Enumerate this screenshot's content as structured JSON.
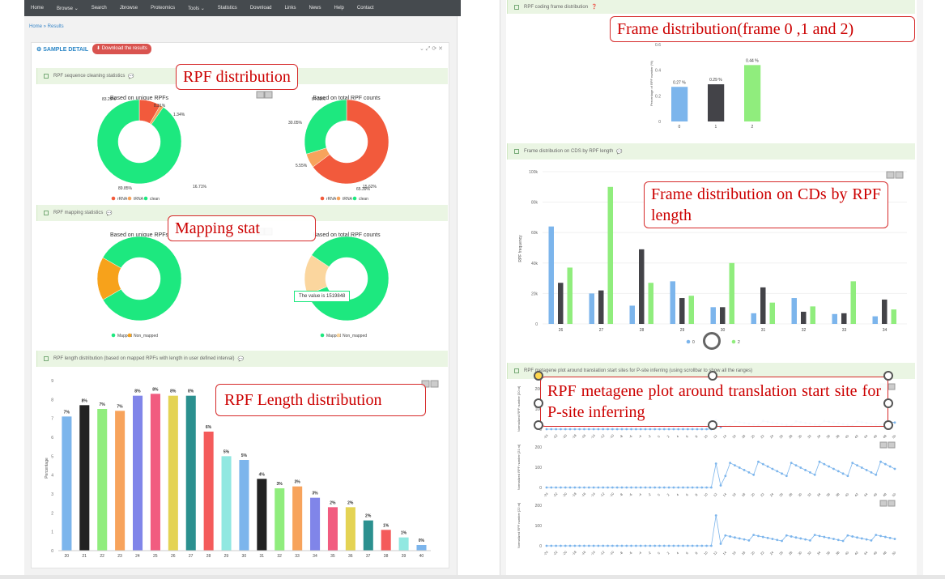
{
  "nav": [
    "Home",
    "Browse ⌄",
    "Search",
    "Jbrowse",
    "Proteomics",
    "Tools ⌄",
    "Statistics",
    "Download",
    "Links",
    "News",
    "Help",
    "Contact"
  ],
  "breadcrumb": "Home » Results",
  "sample_detail": "SAMPLE DETAIL",
  "download_btn": "Download the results",
  "win_controls": "⌄ ⤢ ⟳ ✕",
  "sections": {
    "cleaning": "RPF sequence cleaning statistics",
    "mapping": "RPF mapping statistics",
    "length": "RPF length distribution (based on mapped RPFs with length in user defined interval)",
    "coding": "RPF coding frame distribution",
    "frame_cds": "Frame distribution on CDS by RPF length",
    "metagene": "RPF metagene plot around translation start sites for P-site inferring (using scrollbar to show all the ranges)"
  },
  "callouts": {
    "rpf_dist": "RPF distribution",
    "mapping": "Mapping stat",
    "length": "RPF Length distribution",
    "frame": "Frame distribution(frame 0 ,1 and 2)",
    "frame_cds": "Frame distribution on CDs by RPF length",
    "metagene": "RPF metagene plot around translation start site for P-site inferring"
  },
  "tooltip": "The value is 1519848",
  "chart_data": [
    {
      "type": "pie",
      "title": "Based on unique RPFs",
      "labels": [
        "rRNA",
        "tRNA",
        "clean"
      ],
      "values": [
        8.31,
        1.34,
        89.85
      ],
      "colors": [
        "#f25a3c",
        "#f7a35c",
        "#1de87f"
      ],
      "label_text": [
        "8.31%",
        "1.34%",
        "89.85%"
      ]
    },
    {
      "type": "pie",
      "title": "Based on total RPF counts",
      "labels": [
        "rRNA",
        "tRNA",
        "clean"
      ],
      "values": [
        65.39,
        5.55,
        30.05
      ],
      "colors": [
        "#f25a3c",
        "#f7a35c",
        "#1de87f"
      ],
      "label_text": [
        "65.39%",
        "5.55%",
        "30.05%"
      ]
    },
    {
      "type": "pie",
      "title": "Based on unique RPFs",
      "labels": [
        "Mapped",
        "Non_mapped"
      ],
      "values": [
        83.29,
        16.71
      ],
      "colors": [
        "#1de87f",
        "#f7a21b"
      ],
      "label_text": [
        "83.29%",
        "16.71%"
      ]
    },
    {
      "type": "pie",
      "title": "Based on total RPF counts",
      "labels": [
        "Mapped",
        "Non_mapped"
      ],
      "values": [
        84.38,
        15.62
      ],
      "colors": [
        "#1de87f",
        "#fbd69e"
      ],
      "label_text": [
        "84.38%",
        "15.62%"
      ]
    },
    {
      "type": "bar",
      "ylabel": "Percentage",
      "categories": [
        "20",
        "21",
        "22",
        "23",
        "24",
        "25",
        "26",
        "27",
        "28",
        "29",
        "30",
        "31",
        "32",
        "33",
        "34",
        "35",
        "36",
        "37",
        "38",
        "39",
        "40"
      ],
      "values": [
        7.1,
        7.7,
        7.5,
        7.4,
        8.2,
        8.3,
        8.2,
        8.2,
        6.3,
        5,
        4.8,
        3.8,
        3.3,
        3.4,
        2.8,
        2.3,
        2.3,
        1.6,
        1.1,
        0.7,
        0.3
      ],
      "labels": [
        "7%",
        "8%",
        "7%",
        "7%",
        "8%",
        "8%",
        "8%",
        "8%",
        "6%",
        "5%",
        "5%",
        "4%",
        "3%",
        "3%",
        "3%",
        "2%",
        "2%",
        "2%",
        "1%",
        "1%",
        "0%"
      ],
      "colors": [
        "#7cb5ec",
        "#222",
        "#90ed7d",
        "#f7a35c",
        "#8085e9",
        "#f15c80",
        "#e4d354",
        "#2b908f",
        "#f45b5b",
        "#91e8e1",
        "#7cb5ec",
        "#222",
        "#90ed7d",
        "#f7a35c",
        "#8085e9",
        "#f15c80",
        "#e4d354",
        "#2b908f",
        "#f45b5b",
        "#91e8e1",
        "#7cb5ec"
      ],
      "ylim": [
        0,
        9
      ],
      "yticks": [
        "0",
        "1",
        "2",
        "3",
        "4",
        "5",
        "6",
        "7",
        "8",
        "9"
      ]
    },
    {
      "type": "bar",
      "ylabel": "Percentage of RPF number (%)",
      "categories": [
        "0",
        "1",
        "2"
      ],
      "values": [
        0.27,
        0.29,
        0.44
      ],
      "labels": [
        "0.27 %",
        "0.29 %",
        "0.44 %"
      ],
      "colors": [
        "#7cb5ec",
        "#434348",
        "#90ed7d"
      ],
      "ylim": [
        0,
        0.6
      ],
      "yticks": [
        "0",
        "0.2",
        "0.4",
        "0.6"
      ]
    },
    {
      "type": "bar",
      "ylabel": "RPF frequency",
      "categories": [
        "26",
        "27",
        "28",
        "29",
        "30",
        "31",
        "32",
        "33",
        "34"
      ],
      "series": [
        {
          "name": "0",
          "color": "#7cb5ec",
          "values": [
            64000,
            20000,
            12000,
            28000,
            11000,
            7000,
            17000,
            6500,
            5000
          ]
        },
        {
          "name": "1",
          "color": "#434348",
          "values": [
            27000,
            22000,
            49000,
            17000,
            11000,
            24000,
            8000,
            7000,
            16000
          ]
        },
        {
          "name": "2",
          "color": "#90ed7d",
          "values": [
            37000,
            90000,
            27000,
            18500,
            40000,
            14000,
            11500,
            28000,
            9500
          ]
        }
      ],
      "ylim": [
        0,
        100000
      ],
      "yticks": [
        "0",
        "20k",
        "40k",
        "60k",
        "80k",
        "100k"
      ]
    },
    {
      "type": "line",
      "ylabel": "Normalized RPF number [20 nt]",
      "xticks": [
        "-24",
        "-22",
        "-20",
        "-18",
        "-16",
        "-14",
        "-12",
        "-10",
        "-8",
        "-6",
        "-4",
        "-2",
        "0",
        "2",
        "4",
        "6",
        "8",
        "10",
        "12",
        "14",
        "16",
        "18",
        "20",
        "22",
        "24",
        "26",
        "28",
        "30",
        "32",
        "34",
        "36",
        "38",
        "40",
        "42",
        "44",
        "46",
        "48",
        "50"
      ],
      "yticks": [
        "0",
        "100",
        "200"
      ]
    },
    {
      "type": "line",
      "ylabel": "Normalized RPF number [21 nt]",
      "xticks": [
        "-24",
        "-22",
        "-20",
        "-18",
        "-16",
        "-14",
        "-12",
        "-10",
        "-8",
        "-6",
        "-4",
        "-2",
        "0",
        "2",
        "4",
        "6",
        "8",
        "10",
        "12",
        "14",
        "16",
        "18",
        "20",
        "22",
        "24",
        "26",
        "28",
        "30",
        "32",
        "34",
        "36",
        "38",
        "40",
        "42",
        "44",
        "46",
        "48",
        "50"
      ],
      "yticks": [
        "0",
        "100",
        "200"
      ]
    },
    {
      "type": "line",
      "ylabel": "Normalized RPF number [22 nt]",
      "xticks": [
        "-24",
        "-22",
        "-20",
        "-18",
        "-16",
        "-14",
        "-12",
        "-10",
        "-8",
        "-6",
        "-4",
        "-2",
        "0",
        "2",
        "4",
        "6",
        "8",
        "10",
        "12",
        "14",
        "16",
        "18",
        "20",
        "22",
        "24",
        "26",
        "28",
        "30",
        "32",
        "34",
        "36",
        "38",
        "40",
        "42",
        "44",
        "46",
        "48",
        "50"
      ],
      "yticks": [
        "0",
        "100",
        "200"
      ]
    }
  ]
}
